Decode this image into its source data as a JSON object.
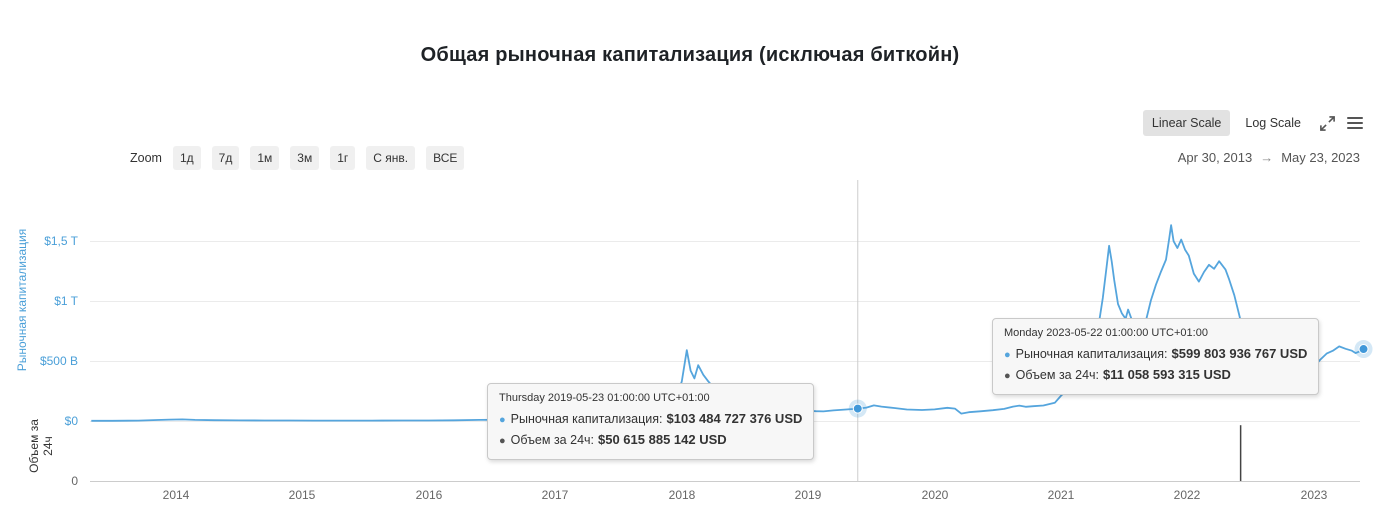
{
  "title": "Общая рыночная капитализация (исключая биткойн)",
  "scale_controls": {
    "linear_label": "Linear Scale",
    "log_label": "Log Scale"
  },
  "icons": {
    "fullscreen": "expand-arrows-icon",
    "menu": "hamburger-menu-icon"
  },
  "zoom_controls": {
    "label": "Zoom",
    "buttons": [
      "1д",
      "7д",
      "1м",
      "3м",
      "1г",
      "С янв.",
      "ВСЕ"
    ]
  },
  "date_range": {
    "from": "Apr 30, 2013",
    "arrow": "→",
    "to": "May 23, 2023"
  },
  "cap_axis": {
    "label": "Рыночная капитализация",
    "ticks": [
      "$1,5 T",
      "$1 T",
      "$500 B",
      "$0"
    ]
  },
  "volume_axis": {
    "label": "Объем за 24ч",
    "ticks": [
      "0"
    ]
  },
  "x_axis": {
    "ticks": [
      "2014",
      "2015",
      "2016",
      "2017",
      "2018",
      "2019",
      "2020",
      "2021",
      "2022",
      "2023"
    ]
  },
  "tooltips": [
    {
      "date": "Thursday 2019-05-23 01:00:00 UTC+01:00",
      "cap_label": "Рыночная капитализация:",
      "cap_value": "$103 484 727 376 USD",
      "vol_label": "Объем за 24ч:",
      "vol_value": "$50 615 885 142 USD"
    },
    {
      "date": "Monday 2023-05-22 01:00:00 UTC+01:00",
      "cap_label": "Рыночная капитализация:",
      "cap_value": "$599 803 936 767 USD",
      "vol_label": "Объем за 24ч:",
      "vol_value": "$11 058 593 315 USD"
    }
  ],
  "colors": {
    "line": "#55a5dd",
    "marker": "#4198d9",
    "marker_halo": "rgba(85,165,221,0.25)",
    "axis_blue": "#4a9fd8",
    "volume_dark": "#444444",
    "grid": "#ebebeb",
    "crosshair": "#cccccc",
    "tooltip_bg": "#f7f7f7"
  },
  "chart_data": {
    "type": "line",
    "title": "Общая рыночная капитализация (исключая биткойн)",
    "xlabel": "",
    "ylabel": "Рыночная капитализация",
    "x_range_years": [
      2013.326,
      2023.392
    ],
    "cap_axis_ticks_billions": [
      0,
      500,
      1000,
      1500
    ],
    "legend": "none",
    "grid": "horizontal",
    "crosshair_year": 2019.392,
    "markers": [
      {
        "year": 2019.392,
        "cap_billions": 103.48
      },
      {
        "year": 2023.392,
        "cap_billions": 599.8
      }
    ],
    "volume_bar": {
      "year": 2022.42,
      "height_frac": 0.93
    },
    "series": [
      {
        "name": "Рыночная капитализация",
        "unit": "billions USD",
        "points": [
          [
            2013.33,
            1.5
          ],
          [
            2013.5,
            2
          ],
          [
            2013.7,
            3
          ],
          [
            2013.85,
            8
          ],
          [
            2013.95,
            12
          ],
          [
            2014.05,
            13
          ],
          [
            2014.15,
            9
          ],
          [
            2014.3,
            7
          ],
          [
            2014.5,
            5
          ],
          [
            2014.7,
            4.5
          ],
          [
            2014.9,
            4
          ],
          [
            2015.1,
            3
          ],
          [
            2015.3,
            3.5
          ],
          [
            2015.55,
            3
          ],
          [
            2015.8,
            4
          ],
          [
            2016.0,
            4.5
          ],
          [
            2016.2,
            6
          ],
          [
            2016.4,
            9
          ],
          [
            2016.55,
            10
          ],
          [
            2016.7,
            9
          ],
          [
            2016.85,
            10.5
          ],
          [
            2017.0,
            14
          ],
          [
            2017.1,
            20
          ],
          [
            2017.25,
            35
          ],
          [
            2017.35,
            62
          ],
          [
            2017.42,
            55
          ],
          [
            2017.5,
            48
          ],
          [
            2017.58,
            62
          ],
          [
            2017.68,
            70
          ],
          [
            2017.78,
            82
          ],
          [
            2017.86,
            96
          ],
          [
            2017.92,
            130
          ],
          [
            2017.96,
            210
          ],
          [
            2018.0,
            330
          ],
          [
            2018.02,
            460
          ],
          [
            2018.04,
            590
          ],
          [
            2018.07,
            420
          ],
          [
            2018.1,
            355
          ],
          [
            2018.13,
            465
          ],
          [
            2018.17,
            385
          ],
          [
            2018.21,
            330
          ],
          [
            2018.26,
            270
          ],
          [
            2018.31,
            255
          ],
          [
            2018.36,
            300
          ],
          [
            2018.42,
            262
          ],
          [
            2018.5,
            215
          ],
          [
            2018.56,
            192
          ],
          [
            2018.62,
            176
          ],
          [
            2018.7,
            132
          ],
          [
            2018.78,
            126
          ],
          [
            2018.84,
            114
          ],
          [
            2018.89,
            96
          ],
          [
            2018.95,
            88
          ],
          [
            2019.0,
            85
          ],
          [
            2019.06,
            82
          ],
          [
            2019.12,
            80
          ],
          [
            2019.2,
            88
          ],
          [
            2019.3,
            96
          ],
          [
            2019.392,
            103.5
          ],
          [
            2019.46,
            112
          ],
          [
            2019.52,
            130
          ],
          [
            2019.58,
            120
          ],
          [
            2019.68,
            108
          ],
          [
            2019.78,
            96
          ],
          [
            2019.9,
            92
          ],
          [
            2020.0,
            97
          ],
          [
            2020.1,
            110
          ],
          [
            2020.16,
            103
          ],
          [
            2020.21,
            62
          ],
          [
            2020.27,
            73
          ],
          [
            2020.36,
            81
          ],
          [
            2020.46,
            90
          ],
          [
            2020.55,
            101
          ],
          [
            2020.62,
            120
          ],
          [
            2020.67,
            128
          ],
          [
            2020.72,
            118
          ],
          [
            2020.78,
            123
          ],
          [
            2020.86,
            129
          ],
          [
            2020.95,
            152
          ],
          [
            2021.0,
            212
          ],
          [
            2021.05,
            258
          ],
          [
            2021.09,
            302
          ],
          [
            2021.13,
            345
          ],
          [
            2021.16,
            432
          ],
          [
            2021.19,
            478
          ],
          [
            2021.23,
            532
          ],
          [
            2021.27,
            645
          ],
          [
            2021.3,
            820
          ],
          [
            2021.33,
            1025
          ],
          [
            2021.36,
            1285
          ],
          [
            2021.38,
            1460
          ],
          [
            2021.4,
            1330
          ],
          [
            2021.42,
            1175
          ],
          [
            2021.45,
            975
          ],
          [
            2021.48,
            898
          ],
          [
            2021.51,
            852
          ],
          [
            2021.53,
            928
          ],
          [
            2021.56,
            842
          ],
          [
            2021.59,
            782
          ],
          [
            2021.63,
            758
          ],
          [
            2021.67,
            832
          ],
          [
            2021.71,
            1005
          ],
          [
            2021.75,
            1135
          ],
          [
            2021.79,
            1245
          ],
          [
            2021.83,
            1345
          ],
          [
            2021.855,
            1520
          ],
          [
            2021.87,
            1632
          ],
          [
            2021.89,
            1498
          ],
          [
            2021.92,
            1442
          ],
          [
            2021.95,
            1512
          ],
          [
            2021.98,
            1428
          ],
          [
            2022.01,
            1378
          ],
          [
            2022.05,
            1228
          ],
          [
            2022.09,
            1162
          ],
          [
            2022.13,
            1242
          ],
          [
            2022.17,
            1302
          ],
          [
            2022.21,
            1268
          ],
          [
            2022.25,
            1332
          ],
          [
            2022.3,
            1262
          ],
          [
            2022.33,
            1178
          ],
          [
            2022.37,
            1048
          ],
          [
            2022.41,
            878
          ],
          [
            2022.45,
            698
          ],
          [
            2022.49,
            578
          ],
          [
            2022.53,
            522
          ],
          [
            2022.57,
            556
          ],
          [
            2022.61,
            592
          ],
          [
            2022.65,
            612
          ],
          [
            2022.7,
            576
          ],
          [
            2022.75,
            556
          ],
          [
            2022.8,
            542
          ],
          [
            2022.85,
            506
          ],
          [
            2022.88,
            446
          ],
          [
            2022.92,
            424
          ],
          [
            2022.96,
            436
          ],
          [
            2023.0,
            452
          ],
          [
            2023.05,
            512
          ],
          [
            2023.1,
            562
          ],
          [
            2023.15,
            586
          ],
          [
            2023.2,
            622
          ],
          [
            2023.25,
            602
          ],
          [
            2023.3,
            586
          ],
          [
            2023.33,
            566
          ],
          [
            2023.36,
            580
          ],
          [
            2023.392,
            599.8
          ]
        ]
      }
    ]
  }
}
